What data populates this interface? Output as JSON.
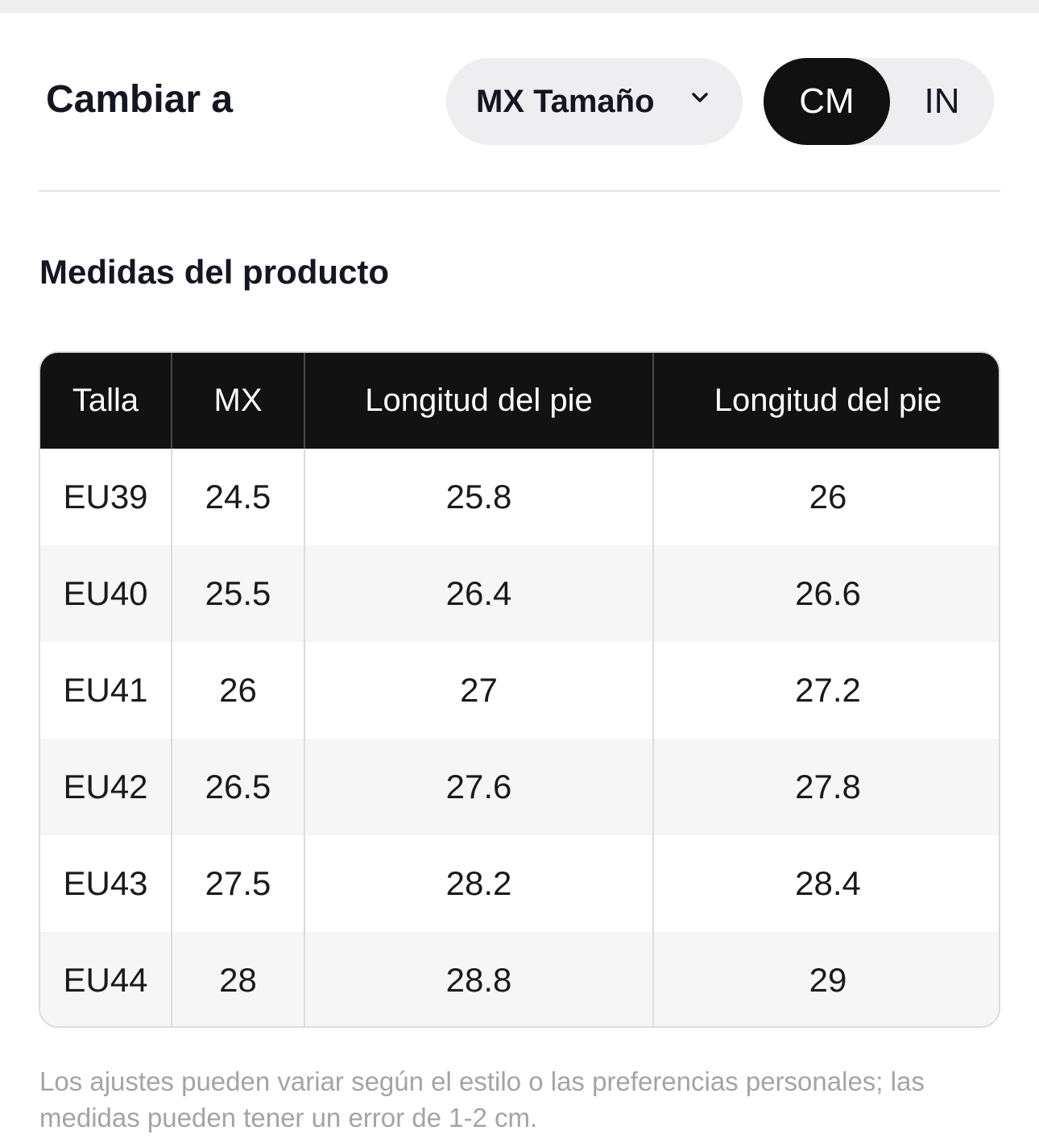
{
  "header": {
    "change_label": "Cambiar a",
    "size_dropdown_value": "MX Tamaño",
    "unit_options": [
      "CM",
      "IN"
    ],
    "selected_unit": "CM"
  },
  "section_title": "Medidas del producto",
  "table": {
    "headers": [
      "Talla",
      "MX",
      "Longitud del pie",
      "Longitud del pie"
    ],
    "rows": [
      [
        "EU39",
        "24.5",
        "25.8",
        "26"
      ],
      [
        "EU40",
        "25.5",
        "26.4",
        "26.6"
      ],
      [
        "EU41",
        "26",
        "27",
        "27.2"
      ],
      [
        "EU42",
        "26.5",
        "27.6",
        "27.8"
      ],
      [
        "EU43",
        "27.5",
        "28.2",
        "28.4"
      ],
      [
        "EU44",
        "28",
        "28.8",
        "29"
      ]
    ]
  },
  "footnote": "Los ajustes pueden variar según el estilo o las preferencias personales; las medidas pueden tener un error de 1-2 cm.",
  "colors": {
    "header_bg": "#121212",
    "toggle_selected_bg": "#111111",
    "pill_bg": "#eeeef1",
    "footnote_text": "#a4a4a8"
  },
  "icons": {
    "dropdown": "chevron-down-icon"
  }
}
